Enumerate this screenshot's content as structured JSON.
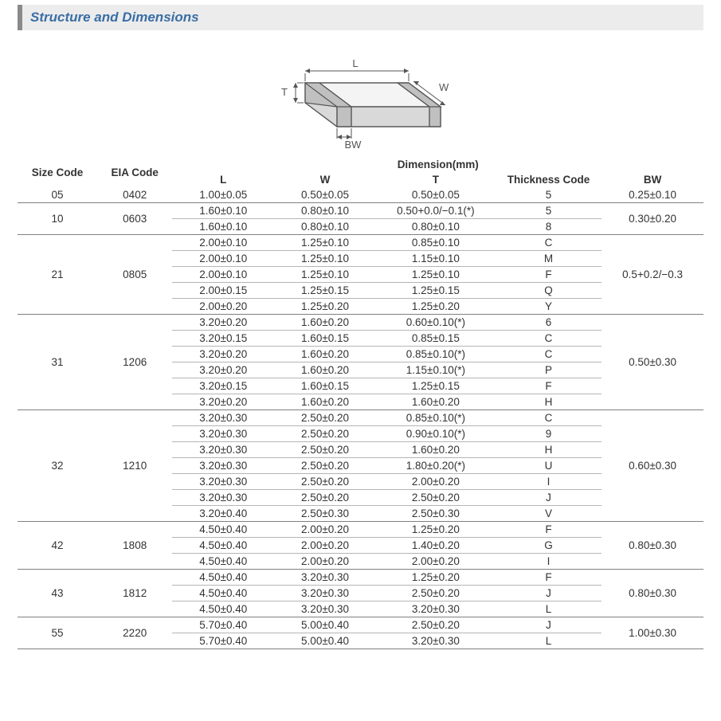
{
  "header": {
    "title": "Structure and Dimensions"
  },
  "diagram": {
    "labels": {
      "L": "L",
      "W": "W",
      "T": "T",
      "BW": "BW"
    }
  },
  "table": {
    "header": {
      "size_code": "Size Code",
      "eia_code": "EIA Code",
      "dimension_group": "Dimension(mm)",
      "L": "L",
      "W": "W",
      "T": "T",
      "thickness": "Thickness Code",
      "BW": "BW"
    },
    "groups": [
      {
        "size": "05",
        "eia": "0402",
        "bw": "0.25±0.10",
        "rows": [
          {
            "L": "1.00±0.05",
            "W": "0.50±0.05",
            "T": "0.50±0.05",
            "thk": "5"
          }
        ]
      },
      {
        "size": "10",
        "eia": "0603",
        "bw": "0.30±0.20",
        "rows": [
          {
            "L": "1.60±0.10",
            "W": "0.80±0.10",
            "T": "0.50+0.0/−0.1(*)",
            "thk": "5"
          },
          {
            "L": "1.60±0.10",
            "W": "0.80±0.10",
            "T": "0.80±0.10",
            "thk": "8"
          }
        ]
      },
      {
        "size": "21",
        "eia": "0805",
        "bw": "0.5+0.2/−0.3",
        "rows": [
          {
            "L": "2.00±0.10",
            "W": "1.25±0.10",
            "T": "0.85±0.10",
            "thk": "C"
          },
          {
            "L": "2.00±0.10",
            "W": "1.25±0.10",
            "T": "1.15±0.10",
            "thk": "M"
          },
          {
            "L": "2.00±0.10",
            "W": "1.25±0.10",
            "T": "1.25±0.10",
            "thk": "F"
          },
          {
            "L": "2.00±0.15",
            "W": "1.25±0.15",
            "T": "1.25±0.15",
            "thk": "Q"
          },
          {
            "L": "2.00±0.20",
            "W": "1.25±0.20",
            "T": "1.25±0.20",
            "thk": "Y"
          }
        ]
      },
      {
        "size": "31",
        "eia": "1206",
        "bw": "0.50±0.30",
        "rows": [
          {
            "L": "3.20±0.20",
            "W": "1.60±0.20",
            "T": "0.60±0.10(*)",
            "thk": "6"
          },
          {
            "L": "3.20±0.15",
            "W": "1.60±0.15",
            "T": "0.85±0.15",
            "thk": "C"
          },
          {
            "L": "3.20±0.20",
            "W": "1.60±0.20",
            "T": "0.85±0.10(*)",
            "thk": "C"
          },
          {
            "L": "3.20±0.20",
            "W": "1.60±0.20",
            "T": "1.15±0.10(*)",
            "thk": "P"
          },
          {
            "L": "3.20±0.15",
            "W": "1.60±0.15",
            "T": "1.25±0.15",
            "thk": "F"
          },
          {
            "L": "3.20±0.20",
            "W": "1.60±0.20",
            "T": "1.60±0.20",
            "thk": "H"
          }
        ]
      },
      {
        "size": "32",
        "eia": "1210",
        "bw": "0.60±0.30",
        "rows": [
          {
            "L": "3.20±0.30",
            "W": "2.50±0.20",
            "T": "0.85±0.10(*)",
            "thk": "C"
          },
          {
            "L": "3.20±0.30",
            "W": "2.50±0.20",
            "T": "0.90±0.10(*)",
            "thk": "9"
          },
          {
            "L": "3.20±0.30",
            "W": "2.50±0.20",
            "T": "1.60±0.20",
            "thk": "H"
          },
          {
            "L": "3.20±0.30",
            "W": "2.50±0.20",
            "T": "1.80±0.20(*)",
            "thk": "U"
          },
          {
            "L": "3.20±0.30",
            "W": "2.50±0.20",
            "T": "2.00±0.20",
            "thk": "I"
          },
          {
            "L": "3.20±0.30",
            "W": "2.50±0.20",
            "T": "2.50±0.20",
            "thk": "J"
          },
          {
            "L": "3.20±0.40",
            "W": "2.50±0.30",
            "T": "2.50±0.30",
            "thk": "V"
          }
        ]
      },
      {
        "size": "42",
        "eia": "1808",
        "bw": "0.80±0.30",
        "rows": [
          {
            "L": "4.50±0.40",
            "W": "2.00±0.20",
            "T": "1.25±0.20",
            "thk": "F"
          },
          {
            "L": "4.50±0.40",
            "W": "2.00±0.20",
            "T": "1.40±0.20",
            "thk": "G"
          },
          {
            "L": "4.50±0.40",
            "W": "2.00±0.20",
            "T": "2.00±0.20",
            "thk": "I"
          }
        ]
      },
      {
        "size": "43",
        "eia": "1812",
        "bw": "0.80±0.30",
        "rows": [
          {
            "L": "4.50±0.40",
            "W": "3.20±0.30",
            "T": "1.25±0.20",
            "thk": "F"
          },
          {
            "L": "4.50±0.40",
            "W": "3.20±0.30",
            "T": "2.50±0.20",
            "thk": "J"
          },
          {
            "L": "4.50±0.40",
            "W": "3.20±0.30",
            "T": "3.20±0.30",
            "thk": "L"
          }
        ]
      },
      {
        "size": "55",
        "eia": "2220",
        "bw": "1.00±0.30",
        "rows": [
          {
            "L": "5.70±0.40",
            "W": "5.00±0.40",
            "T": "2.50±0.20",
            "thk": "J"
          },
          {
            "L": "5.70±0.40",
            "W": "5.00±0.40",
            "T": "3.20±0.30",
            "thk": "L"
          }
        ]
      }
    ]
  },
  "colors": {
    "header_accent": "#3a6ea5",
    "header_bg": "#ececec",
    "header_border": "#8a8a8a",
    "table_border": "#808080",
    "table_thin_border": "#b5b5b5",
    "text": "#333333"
  }
}
